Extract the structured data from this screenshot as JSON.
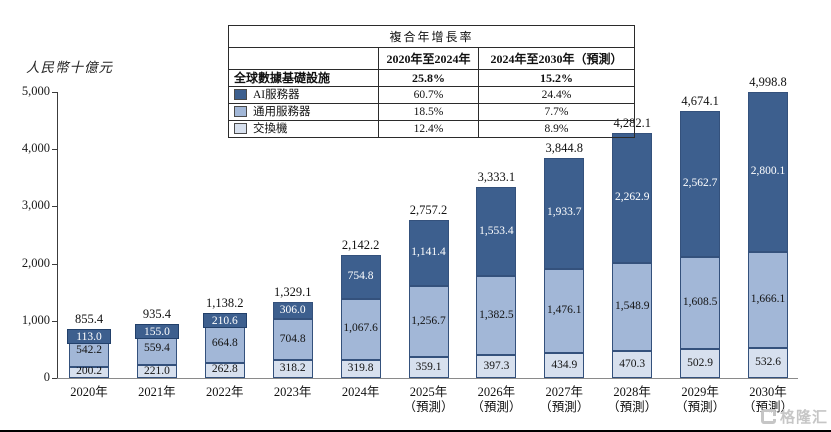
{
  "chart_data": {
    "type": "bar",
    "stacked": true,
    "title": "",
    "ylabel": "人民幣十億元",
    "xlabel": "",
    "ylim": [
      0,
      5000
    ],
    "yticks": [
      0,
      1000,
      2000,
      3000,
      4000,
      5000
    ],
    "ytick_labels": [
      "0",
      "1,000",
      "2,000",
      "3,000",
      "4,000",
      "5,000"
    ],
    "grid": false,
    "legend_position": "top-table",
    "categories": [
      "2020年",
      "2021年",
      "2022年",
      "2023年",
      "2024年",
      "2025年",
      "2026年",
      "2027年",
      "2028年",
      "2029年",
      "2030年"
    ],
    "forecast_label": "（預測）",
    "forecast_from_index": 5,
    "series": [
      {
        "name": "交換機",
        "color": "#d7e0ee",
        "values": [
          200.2,
          221.0,
          262.8,
          318.2,
          319.8,
          359.1,
          397.3,
          434.9,
          470.3,
          502.9,
          532.6
        ]
      },
      {
        "name": "通用服務器",
        "color": "#a2b7d7",
        "values": [
          542.2,
          559.4,
          664.8,
          704.8,
          1067.6,
          1256.7,
          1382.5,
          1476.1,
          1548.9,
          1608.5,
          1666.1
        ]
      },
      {
        "name": "AI服務器",
        "color": "#3d5f8e",
        "values": [
          113.0,
          155.0,
          210.6,
          306.0,
          754.8,
          1141.4,
          1553.4,
          1933.7,
          2262.9,
          2562.7,
          2800.1
        ]
      }
    ],
    "totals": [
      855.4,
      935.4,
      1138.2,
      1329.1,
      2142.2,
      2757.2,
      3333.1,
      3844.8,
      4282.1,
      4674.1,
      4998.8
    ]
  },
  "cagr_table": {
    "title": "複合年增長率",
    "col_headers": [
      "2020年至2024年",
      "2024年至2030年（預測）"
    ],
    "rows": [
      {
        "label": "全球數據基礎設施",
        "swatch": null,
        "values": [
          "25.8%",
          "15.2%"
        ]
      },
      {
        "label": "AI服務器",
        "swatch": "#3d5f8e",
        "values": [
          "60.7%",
          "24.4%"
        ]
      },
      {
        "label": "通用服務器",
        "swatch": "#a2b7d7",
        "values": [
          "18.5%",
          "7.7%"
        ]
      },
      {
        "label": "交換機",
        "swatch": "#d7e0ee",
        "values": [
          "12.4%",
          "8.9%"
        ]
      }
    ]
  },
  "watermark": {
    "text": "格隆汇"
  }
}
